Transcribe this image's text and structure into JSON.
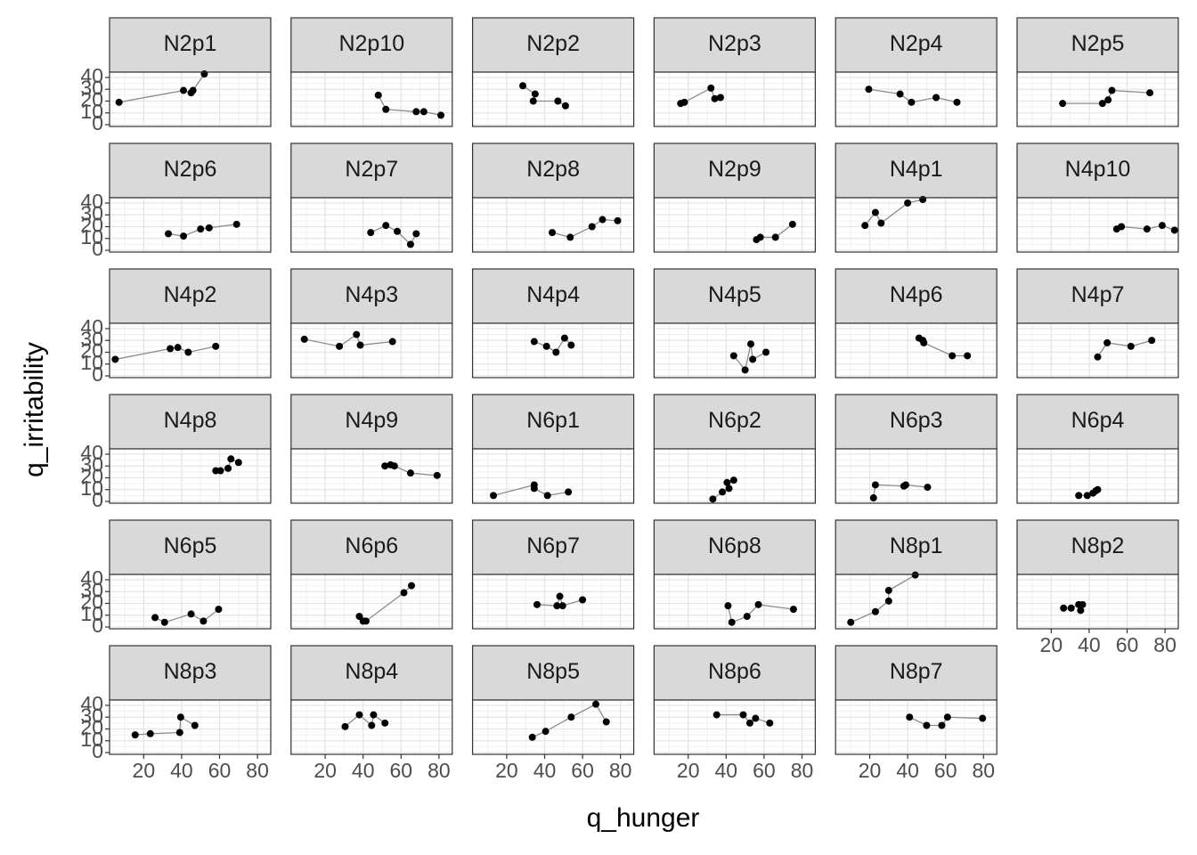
{
  "chart_data": {
    "type": "facet_line",
    "x_label": "q_hunger",
    "y_label": "q_irritability",
    "xlim": [
      2,
      87
    ],
    "ylim": [
      -1.5,
      44.5
    ],
    "xticks": [
      20,
      40,
      60,
      80
    ],
    "yticks": [
      0,
      10,
      20,
      30,
      40
    ],
    "grid": true,
    "point_color": "#000000",
    "line_color": "#8c8c8c",
    "strip_color": "#d9d9d9",
    "panels": [
      {
        "title": "N2p1",
        "x": [
          7,
          41,
          45,
          46,
          52
        ],
        "values": [
          19,
          29,
          27,
          29,
          43
        ]
      },
      {
        "title": "N2p10",
        "x": [
          48,
          52,
          68,
          72,
          81
        ],
        "values": [
          25,
          13,
          11,
          11,
          8
        ]
      },
      {
        "title": "N2p2",
        "x": [
          28.5,
          35,
          34,
          47,
          51
        ],
        "values": [
          33,
          26,
          20,
          20,
          16
        ]
      },
      {
        "title": "N2p3",
        "x": [
          16,
          18,
          32,
          34,
          37
        ],
        "values": [
          18,
          19,
          31,
          22,
          23
        ]
      },
      {
        "title": "N2p4",
        "x": [
          19.5,
          36,
          42,
          55,
          66
        ],
        "values": [
          30,
          26,
          19,
          23,
          19
        ]
      },
      {
        "title": "N2p5",
        "x": [
          26,
          47,
          50,
          52,
          72
        ],
        "values": [
          18,
          18,
          21,
          29,
          27
        ]
      },
      {
        "title": "N2p6",
        "x": [
          33,
          41,
          50,
          54.5,
          69
        ],
        "values": [
          14,
          12,
          18,
          19,
          22
        ]
      },
      {
        "title": "N2p7",
        "x": [
          44,
          52,
          58,
          65,
          68
        ],
        "values": [
          15,
          21,
          16,
          5,
          14
        ]
      },
      {
        "title": "N2p8",
        "x": [
          44,
          53.5,
          65,
          70.5,
          78.5
        ],
        "values": [
          15,
          11,
          20,
          26,
          25
        ]
      },
      {
        "title": "N2p9",
        "x": [
          56,
          58,
          66,
          75
        ],
        "values": [
          9,
          11,
          11,
          22
        ]
      },
      {
        "title": "N4p1",
        "x": [
          17.5,
          23,
          26,
          40,
          48
        ],
        "values": [
          21,
          32,
          23,
          40,
          43
        ]
      },
      {
        "title": "N4p10",
        "x": [
          54.5,
          57,
          70.5,
          78.5,
          85
        ],
        "values": [
          18,
          20,
          18,
          21,
          17
        ]
      },
      {
        "title": "N4p2",
        "x": [
          5,
          34,
          38,
          43.5,
          58
        ],
        "values": [
          14,
          23,
          24,
          20,
          25
        ]
      },
      {
        "title": "N4p3",
        "x": [
          9,
          27.5,
          36.5,
          38.5,
          55.5
        ],
        "values": [
          31,
          25,
          35,
          26,
          29
        ]
      },
      {
        "title": "N4p4",
        "x": [
          34.5,
          41,
          46,
          50.5,
          54
        ],
        "values": [
          29,
          25,
          20,
          32,
          26
        ]
      },
      {
        "title": "N4p5",
        "x": [
          44,
          50,
          53,
          54,
          61
        ],
        "values": [
          17,
          5,
          27,
          14,
          20
        ]
      },
      {
        "title": "N4p6",
        "x": [
          46,
          48,
          48.5,
          63.5,
          71.5
        ],
        "values": [
          32,
          30,
          28,
          17,
          17
        ]
      },
      {
        "title": "N4p7",
        "x": [
          44.5,
          49.5,
          62,
          73
        ],
        "values": [
          16,
          28,
          25,
          30
        ]
      },
      {
        "title": "N4p8",
        "x": [
          58,
          60.5,
          64.5,
          66,
          70
        ],
        "values": [
          26,
          26,
          28,
          36,
          33
        ]
      },
      {
        "title": "N4p9",
        "x": [
          51.5,
          54.5,
          56.5,
          65,
          79
        ],
        "values": [
          30,
          31,
          30,
          24,
          22
        ]
      },
      {
        "title": "N6p1",
        "x": [
          13,
          34.5,
          34.5,
          41.5,
          52.5
        ],
        "values": [
          5,
          14,
          11,
          5,
          8
        ]
      },
      {
        "title": "N6p2",
        "x": [
          33,
          38,
          41.5,
          40.5,
          44
        ],
        "values": [
          2,
          8,
          11,
          16,
          18
        ]
      },
      {
        "title": "N6p3",
        "x": [
          22,
          23,
          38,
          39,
          50.5
        ],
        "values": [
          3,
          14,
          13,
          14,
          12
        ]
      },
      {
        "title": "N6p4",
        "x": [
          34.5,
          39,
          42,
          43.5,
          44.5
        ],
        "values": [
          5,
          5,
          7,
          9,
          10
        ]
      },
      {
        "title": "N6p5",
        "x": [
          26,
          31,
          45,
          51.5,
          59.5
        ],
        "values": [
          8,
          4,
          11,
          5,
          15
        ]
      },
      {
        "title": "N6p6",
        "x": [
          38,
          40,
          41.5,
          61.5,
          65.5
        ],
        "values": [
          9,
          5,
          5,
          29,
          35
        ]
      },
      {
        "title": "N6p7",
        "x": [
          36,
          46.5,
          48,
          49.5,
          60
        ],
        "values": [
          19,
          18,
          26,
          18,
          23
        ]
      },
      {
        "title": "N6p8",
        "x": [
          41,
          43,
          51,
          57,
          75.5
        ],
        "values": [
          18,
          4,
          9,
          19,
          15
        ]
      },
      {
        "title": "N8p1",
        "x": [
          10,
          23,
          30,
          30,
          44
        ],
        "values": [
          4,
          13,
          22,
          31,
          44
        ]
      },
      {
        "title": "N8p2",
        "x": [
          26.5,
          30.5,
          34.5,
          35.5,
          36.5
        ],
        "values": [
          16,
          16,
          19,
          14,
          19
        ]
      },
      {
        "title": "N8p3",
        "x": [
          15.5,
          23.5,
          39,
          39.5,
          47
        ],
        "values": [
          15,
          16,
          17,
          30,
          23
        ]
      },
      {
        "title": "N8p4",
        "x": [
          30.5,
          38,
          44.5,
          45.5,
          51.5
        ],
        "values": [
          22,
          32,
          23,
          32,
          25
        ]
      },
      {
        "title": "N8p5",
        "x": [
          33.5,
          40.5,
          54,
          67,
          72.5
        ],
        "values": [
          13,
          18,
          30,
          41,
          26
        ]
      },
      {
        "title": "N8p6",
        "x": [
          35,
          49,
          52.5,
          55.5,
          63
        ],
        "values": [
          32,
          32,
          25,
          29,
          25
        ]
      },
      {
        "title": "N8p7",
        "x": [
          41,
          50,
          58,
          61,
          79.5
        ],
        "values": [
          30,
          23,
          23,
          30,
          29
        ]
      }
    ]
  }
}
